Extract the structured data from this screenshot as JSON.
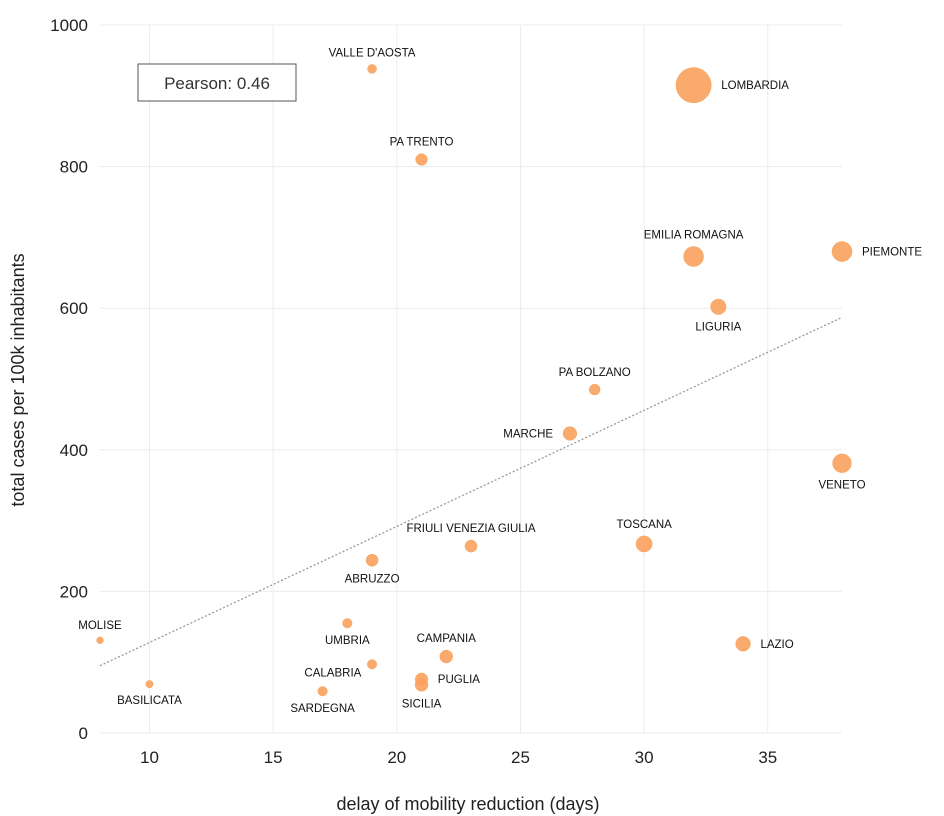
{
  "chart_data": {
    "type": "scatter",
    "xlabel": "delay of mobility reduction (days)",
    "ylabel": "total cases per 100k inhabitants",
    "xlim": [
      8,
      38
    ],
    "ylim": [
      0,
      1000
    ],
    "xticks": [
      10,
      15,
      20,
      25,
      30,
      35
    ],
    "yticks": [
      0,
      200,
      400,
      600,
      800,
      1000
    ],
    "grid": true,
    "bubble_color": "#f9a15c",
    "trendline": {
      "style": "dotted",
      "from": [
        8,
        95
      ],
      "to": [
        38,
        587
      ]
    },
    "annotation": "Pearson: 0.46",
    "points": [
      {
        "label": "VALLE D'AOSTA",
        "x": 19,
        "y": 938,
        "size": 1,
        "label_pos": "above"
      },
      {
        "label": "LOMBARDIA",
        "x": 32,
        "y": 915,
        "size": 10,
        "label_pos": "right"
      },
      {
        "label": "PA TRENTO",
        "x": 21,
        "y": 810,
        "size": 1.6,
        "label_pos": "above"
      },
      {
        "label": "EMILIA ROMAGNA",
        "x": 32,
        "y": 673,
        "size": 4,
        "label_pos": "above"
      },
      {
        "label": "PIEMONTE",
        "x": 38,
        "y": 680,
        "size": 4,
        "label_pos": "right"
      },
      {
        "label": "LIGURIA",
        "x": 33,
        "y": 602,
        "size": 2.6,
        "label_pos": "below"
      },
      {
        "label": "PA BOLZANO",
        "x": 28,
        "y": 485,
        "size": 1.4,
        "label_pos": "above"
      },
      {
        "label": "MARCHE",
        "x": 27,
        "y": 423,
        "size": 2.1,
        "label_pos": "left"
      },
      {
        "label": "VENETO",
        "x": 38,
        "y": 381,
        "size": 3.6,
        "label_pos": "below"
      },
      {
        "label": "TOSCANA",
        "x": 30,
        "y": 267,
        "size": 2.8,
        "label_pos": "above"
      },
      {
        "label": "FRIULI VENEZIA GIULIA",
        "x": 23,
        "y": 264,
        "size": 1.7,
        "label_pos": "above"
      },
      {
        "label": "ABRUZZO",
        "x": 19,
        "y": 244,
        "size": 1.7,
        "label_pos": "below"
      },
      {
        "label": "UMBRIA",
        "x": 18,
        "y": 155,
        "size": 1.1,
        "label_pos": "below"
      },
      {
        "label": "MOLISE",
        "x": 8,
        "y": 131,
        "size": 0.6,
        "label_pos": "above"
      },
      {
        "label": "LAZIO",
        "x": 34,
        "y": 126,
        "size": 2.4,
        "label_pos": "right"
      },
      {
        "label": "CAMPANIA",
        "x": 22,
        "y": 108,
        "size": 1.9,
        "label_pos": "above"
      },
      {
        "label": "CALABRIA",
        "x": 19,
        "y": 97,
        "size": 1.1,
        "label_pos": "left-below"
      },
      {
        "label": "PUGLIA",
        "x": 21,
        "y": 76,
        "size": 1.8,
        "label_pos": "right"
      },
      {
        "label": "SICILIA",
        "x": 21,
        "y": 68,
        "size": 1.9,
        "label_pos": "below"
      },
      {
        "label": "BASILICATA",
        "x": 10,
        "y": 69,
        "size": 0.7,
        "label_pos": "below"
      },
      {
        "label": "SARDEGNA",
        "x": 17,
        "y": 59,
        "size": 1.1,
        "label_pos": "below"
      }
    ]
  }
}
